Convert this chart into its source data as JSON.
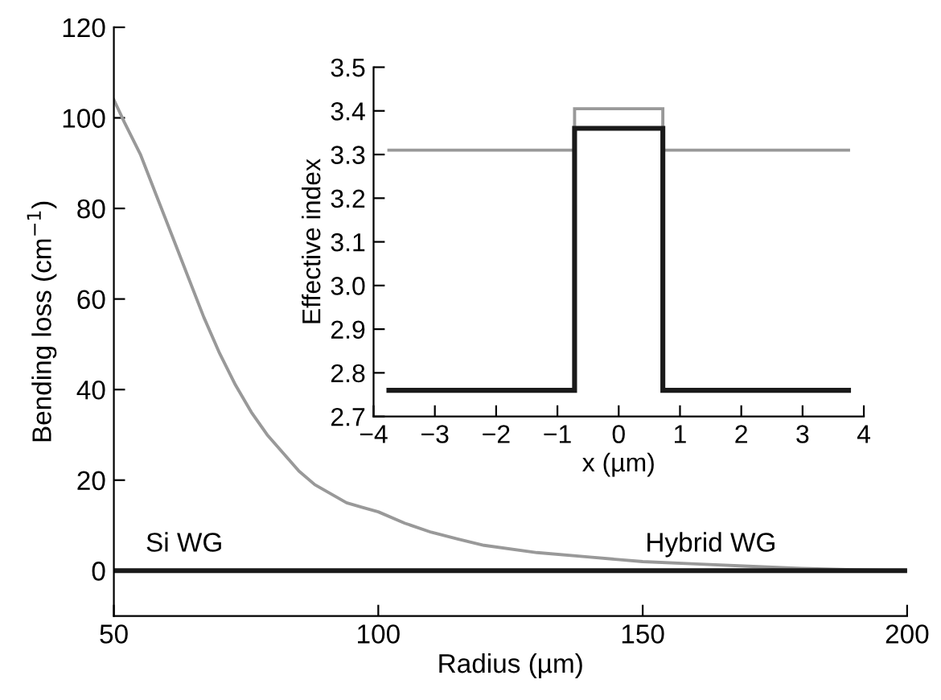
{
  "chart_data": [
    {
      "type": "line",
      "xlabel": "Radius (µm)",
      "ylabel": "Bending loss (cm$^{−1}$)",
      "xlim": [
        50,
        200
      ],
      "ylim": [
        -10,
        120
      ],
      "xticks": [
        50,
        100,
        150,
        200
      ],
      "yticks": [
        0,
        20,
        40,
        60,
        80,
        100,
        120
      ],
      "grid": false,
      "tick_labels": "xy",
      "series": [
        {
          "color": "#999999",
          "x": [
            50,
            52,
            55,
            58,
            61,
            64,
            67,
            70,
            73,
            76,
            79,
            82,
            85,
            88,
            91,
            94,
            97,
            100,
            105,
            110,
            115,
            120,
            130,
            140,
            150,
            160,
            170,
            180,
            190,
            200
          ],
          "values": [
            104,
            99,
            92,
            83,
            74,
            65,
            56,
            48,
            41,
            35,
            30,
            26,
            22,
            19,
            17,
            15,
            14,
            13,
            10.5,
            8.5,
            7,
            5.6,
            4,
            3,
            2,
            1.5,
            1,
            0.5,
            0.2,
            0
          ]
        },
        {
          "color": "#1a1a1a",
          "x": [
            50,
            200
          ],
          "values": [
            0,
            0
          ]
        }
      ],
      "annotations": [
        "Si WG",
        "Hybrid WG"
      ]
    },
    {
      "type": "step",
      "xlabel": "x (µm)",
      "ylabel": "Effective index",
      "xlim": [
        -4,
        4
      ],
      "ylim": [
        2.7,
        3.5
      ],
      "xticks": [
        {
          "value": -4,
          "label": "−4"
        },
        {
          "value": -3,
          "label": "−3"
        },
        {
          "value": -2,
          "label": "−2"
        },
        {
          "value": -1,
          "label": "−1"
        },
        0,
        1,
        2,
        3,
        4
      ],
      "yticks": [
        {
          "value": 2.7,
          "label": "2.7"
        },
        {
          "value": 2.8,
          "label": "2.8"
        },
        {
          "value": 2.9,
          "label": "2.9"
        },
        {
          "value": 3.0,
          "label": "3.0"
        },
        {
          "value": 3.1,
          "label": "3.1"
        },
        {
          "value": 3.2,
          "label": "3.2"
        },
        {
          "value": 3.3,
          "label": "3.3"
        },
        {
          "value": 3.4,
          "label": "3.4"
        },
        {
          "value": 3.5,
          "label": "3.5"
        }
      ],
      "grid": false,
      "series": [
        {
          "color": "#999999",
          "x": [
            -3.75,
            -0.72,
            -0.72,
            0.72,
            0.72,
            3.75
          ],
          "values": [
            3.31,
            3.31,
            3.405,
            3.405,
            3.31,
            3.31
          ]
        },
        {
          "color": "#1a1a1a",
          "x": [
            -3.75,
            -0.72,
            -0.72,
            0.72,
            0.72,
            3.75
          ],
          "values": [
            2.76,
            2.76,
            3.36,
            3.36,
            2.76,
            2.76
          ]
        }
      ]
    }
  ]
}
